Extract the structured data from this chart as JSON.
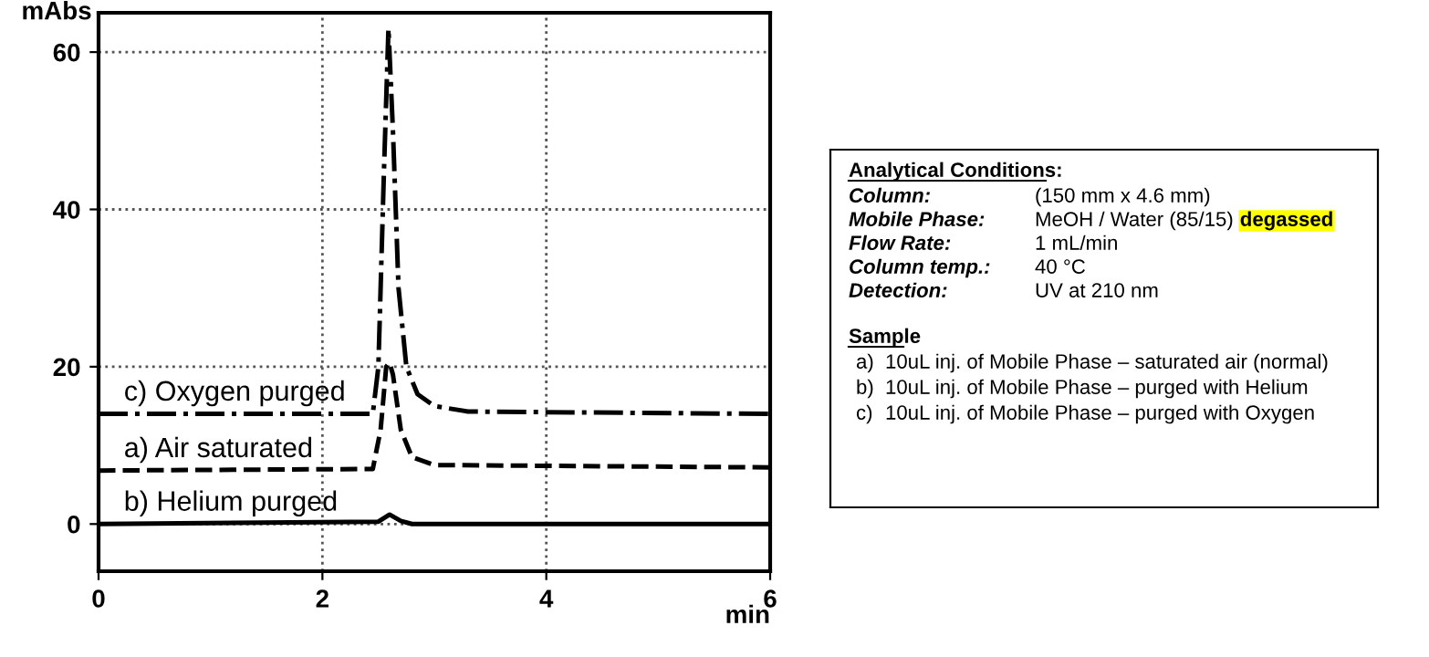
{
  "chart_data": [
    {
      "type": "line",
      "xlabel": "min",
      "ylabel": "mAbs",
      "xlim": [
        0,
        6
      ],
      "ylim": [
        -6,
        65
      ],
      "xticks": [
        0,
        2,
        4,
        6
      ],
      "yticks": [
        0,
        20,
        40,
        60
      ],
      "grid": true,
      "legend": false,
      "marker": "none",
      "series": [
        {
          "name": "c) Oxygen purged",
          "color": "#000000",
          "line_style": "dashdot",
          "x": [
            0,
            2.45,
            2.5,
            2.55,
            2.59,
            2.63,
            2.68,
            2.75,
            2.85,
            3.0,
            3.3,
            6
          ],
          "values": [
            14,
            14,
            20,
            45,
            63,
            50,
            30,
            20,
            16.5,
            15,
            14.3,
            14
          ]
        },
        {
          "name": "a) Air saturated",
          "color": "#000000",
          "line_style": "dashed",
          "x": [
            0,
            2.45,
            2.52,
            2.57,
            2.6,
            2.63,
            2.7,
            2.8,
            3.0,
            6
          ],
          "values": [
            6.8,
            7,
            12,
            20,
            20.5,
            19,
            12,
            8.5,
            7.5,
            7.2
          ]
        },
        {
          "name": "b) Helium purged",
          "color": "#000000",
          "line_style": "solid",
          "x": [
            0,
            2.5,
            2.6,
            2.7,
            2.8,
            6
          ],
          "values": [
            0,
            0.3,
            1.2,
            0.4,
            0,
            0
          ]
        }
      ]
    },
    {
      "type": "other",
      "annotations": [
        "Analytical Conditions:",
        "Column:",
        "(150 mm x 4.6 mm)",
        "Mobile Phase:",
        "MeOH / Water (85/15)",
        "degassed",
        "Flow Rate:",
        "1 mL/min",
        "Column temp.:",
        "40 °C",
        "Detection:",
        "UV at 210 nm",
        "Sample",
        "a)",
        "10uL inj. of Mobile Phase – saturated air (normal)",
        "b)",
        "10uL inj. of Mobile Phase – purged with Helium",
        "c)",
        "10uL inj. of Mobile Phase – purged with Oxygen"
      ]
    }
  ]
}
